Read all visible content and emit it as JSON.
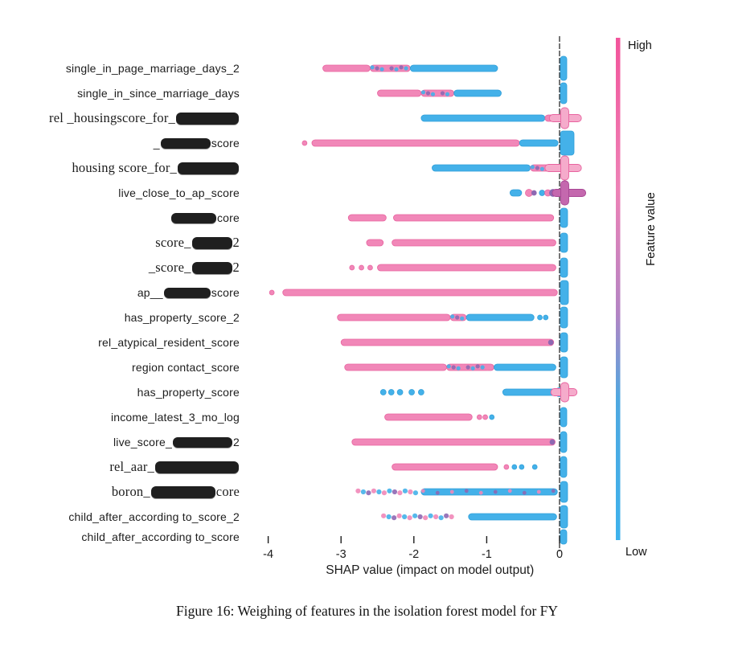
{
  "figure": {
    "caption": "Figure 16: Weighing of features in the isolation forest model for FY"
  },
  "chart_data": {
    "type": "scatter",
    "subtype": "shap-beeswarm",
    "title": "",
    "xlabel": "SHAP value (impact on model output)",
    "xticks": [
      -4,
      -3,
      -2,
      -1,
      0
    ],
    "xlim": [
      -4.1,
      0.4
    ],
    "zero_line_x": 0,
    "grid": false,
    "colorbar": {
      "high_label": "High",
      "low_label": "Low",
      "axis_label": "Feature value",
      "stops": [
        [
          0,
          "#f2549b"
        ],
        [
          0.3,
          "#ee82b6"
        ],
        [
          0.55,
          "#b384c4"
        ],
        [
          0.72,
          "#4fa8e0"
        ],
        [
          1,
          "#3db2ec"
        ]
      ]
    },
    "colors": {
      "pink": "#f187b8",
      "pink_edge": "#e8639f",
      "pink_light": "#f5abcb",
      "blue": "#44b1e9",
      "blue_edge": "#2f9fd9",
      "purple": "#8e68b2",
      "magenta": "#bd5ba6",
      "magenta_edge": "#a84794",
      "axis": "#1c1c1c"
    },
    "features": [
      {
        "y": 85,
        "serif": false,
        "label_parts": [
          {
            "text": "single_in_page_marriage_days_2"
          }
        ],
        "segments": [
          {
            "from": -3.25,
            "to": -2.6,
            "style": "pink"
          },
          {
            "from": -2.6,
            "to": -2.05,
            "style": "mix"
          },
          {
            "from": -2.05,
            "to": -0.85,
            "style": "blue"
          }
        ],
        "dots": [],
        "zero": {
          "type": "bar",
          "color": "blue",
          "h": 30,
          "w": 8
        }
      },
      {
        "y": 116,
        "serif": false,
        "label_parts": [
          {
            "text": "single_in_since_marriage_days"
          }
        ],
        "segments": [
          {
            "from": -2.5,
            "to": -1.9,
            "style": "pink"
          },
          {
            "from": -1.9,
            "to": -1.45,
            "style": "mix"
          },
          {
            "from": -1.45,
            "to": -0.8,
            "style": "blue"
          }
        ],
        "dots": [],
        "zero": {
          "type": "bar",
          "color": "blue",
          "h": 26,
          "w": 8
        }
      },
      {
        "y": 147,
        "serif": true,
        "label_parts": [
          {
            "text": "rel _housingscore_for_"
          },
          {
            "redacted_w": 78
          }
        ],
        "segments": [
          {
            "from": -1.9,
            "to": -0.2,
            "style": "blue"
          },
          {
            "from": -0.2,
            "to": -0.02,
            "style": "pink"
          }
        ],
        "dots": [],
        "zero": {
          "type": "cross",
          "color": "pink",
          "h": 26,
          "armL": -0.14,
          "armR": 0.3
        }
      },
      {
        "y": 178,
        "serif": false,
        "label_parts": [
          {
            "text": "_"
          },
          {
            "redacted_w": 62
          },
          {
            "text": "score"
          }
        ],
        "segments": [
          {
            "from": -3.4,
            "to": -0.55,
            "style": "pink"
          },
          {
            "from": -0.55,
            "to": -0.02,
            "style": "blue"
          }
        ],
        "dots": [
          {
            "x": -3.5,
            "c": "pink",
            "r": 3
          }
        ],
        "zero": {
          "type": "bar",
          "color": "blue",
          "h": 30,
          "w": 17
        }
      },
      {
        "y": 209,
        "serif": true,
        "label_parts": [
          {
            "text": "housing score_for_"
          },
          {
            "redacted_w": 76
          }
        ],
        "segments": [
          {
            "from": -1.75,
            "to": -0.4,
            "style": "blue"
          },
          {
            "from": -0.4,
            "to": -0.05,
            "style": "mix"
          }
        ],
        "dots": [],
        "zero": {
          "type": "cross",
          "color": "pink",
          "h": 30,
          "armL": -0.2,
          "armR": 0.3
        }
      },
      {
        "y": 240,
        "serif": false,
        "label_parts": [
          {
            "text": "live_close_to_ap_score"
          }
        ],
        "segments": [
          {
            "from": -0.68,
            "to": -0.52,
            "style": "blue"
          }
        ],
        "dots": [
          {
            "x": -0.42,
            "c": "pink",
            "r": 4.5
          },
          {
            "x": -0.35,
            "c": "purple",
            "r": 3
          },
          {
            "x": -0.24,
            "c": "blue",
            "r": 3.5
          },
          {
            "x": -0.16,
            "c": "pink",
            "r": 4
          },
          {
            "x": -0.09,
            "c": "purple",
            "r": 4.5
          }
        ],
        "zero": {
          "type": "cross",
          "color": "magenta",
          "h": 30,
          "armL": -0.1,
          "armR": 0.36
        }
      },
      {
        "y": 271,
        "serif": false,
        "label_parts": [
          {
            "redacted_w": 56
          },
          {
            "text": "core"
          }
        ],
        "segments": [
          {
            "from": -2.9,
            "to": -2.38,
            "style": "pink"
          },
          {
            "from": -2.28,
            "to": -0.08,
            "style": "pink"
          }
        ],
        "dots": [],
        "zero": {
          "type": "bar",
          "color": "blue",
          "h": 24,
          "w": 9
        }
      },
      {
        "y": 302,
        "serif": true,
        "label_parts": [
          {
            "text": "score_ "
          },
          {
            "redacted_w": 50
          },
          {
            "text": "2"
          }
        ],
        "segments": [
          {
            "from": -2.65,
            "to": -2.42,
            "style": "pink"
          },
          {
            "from": -2.3,
            "to": -0.05,
            "style": "pink"
          }
        ],
        "dots": [],
        "zero": {
          "type": "bar",
          "color": "blue",
          "h": 24,
          "w": 9
        }
      },
      {
        "y": 333,
        "serif": true,
        "label_parts": [
          {
            "text": "_score_ "
          },
          {
            "redacted_w": 50
          },
          {
            "text": "2"
          }
        ],
        "segments": [
          {
            "from": -2.5,
            "to": -0.05,
            "style": "pink"
          }
        ],
        "dots": [
          {
            "x": -2.85,
            "c": "pink",
            "r": 3
          },
          {
            "x": -2.72,
            "c": "pink",
            "r": 3
          },
          {
            "x": -2.6,
            "c": "pink",
            "r": 3
          }
        ],
        "zero": {
          "type": "bar",
          "color": "blue",
          "h": 24,
          "w": 9
        }
      },
      {
        "y": 364,
        "serif": false,
        "label_parts": [
          {
            "text": "ap__"
          },
          {
            "redacted_w": 58
          },
          {
            "text": "score"
          }
        ],
        "segments": [
          {
            "from": -3.8,
            "to": -0.03,
            "style": "pink"
          }
        ],
        "dots": [
          {
            "x": -3.95,
            "c": "pink",
            "r": 3
          }
        ],
        "zero": {
          "type": "bar",
          "color": "blue",
          "h": 30,
          "w": 10
        }
      },
      {
        "y": 395,
        "serif": false,
        "label_parts": [
          {
            "text": "has_property_score_2"
          }
        ],
        "segments": [
          {
            "from": -3.05,
            "to": -1.5,
            "style": "pink"
          },
          {
            "from": -1.5,
            "to": -1.28,
            "style": "mix"
          },
          {
            "from": -1.28,
            "to": -0.35,
            "style": "blue"
          }
        ],
        "dots": [
          {
            "x": -0.27,
            "c": "blue",
            "r": 3
          },
          {
            "x": -0.19,
            "c": "blue",
            "r": 3
          }
        ],
        "zero": {
          "type": "bar",
          "color": "blue",
          "h": 26,
          "w": 9
        }
      },
      {
        "y": 426,
        "serif": false,
        "label_parts": [
          {
            "text": "rel_atypical_resident_score"
          }
        ],
        "segments": [
          {
            "from": -3.0,
            "to": -0.08,
            "style": "pink"
          }
        ],
        "dots": [
          {
            "x": -0.12,
            "c": "purple",
            "r": 3
          }
        ],
        "zero": {
          "type": "bar",
          "color": "blue",
          "h": 24,
          "w": 9
        }
      },
      {
        "y": 457,
        "serif": false,
        "label_parts": [
          {
            "text": "region contact_score"
          }
        ],
        "segments": [
          {
            "from": -2.95,
            "to": -1.55,
            "style": "pink"
          },
          {
            "from": -1.55,
            "to": -0.9,
            "style": "mix"
          },
          {
            "from": -0.9,
            "to": -0.05,
            "style": "blue"
          }
        ],
        "dots": [],
        "zero": {
          "type": "bar",
          "color": "blue",
          "h": 26,
          "w": 9
        }
      },
      {
        "y": 488,
        "serif": false,
        "label_parts": [
          {
            "text": "has_property_score"
          }
        ],
        "segments": [
          {
            "from": -0.78,
            "to": -0.02,
            "style": "blue"
          }
        ],
        "dots": [
          {
            "x": -2.42,
            "c": "blue",
            "r": 3.5
          },
          {
            "x": -2.31,
            "c": "blue",
            "r": 3.5
          },
          {
            "x": -2.19,
            "c": "blue",
            "r": 3.5
          },
          {
            "x": -2.03,
            "c": "blue",
            "r": 3.5
          },
          {
            "x": -1.9,
            "c": "blue",
            "r": 3.5
          }
        ],
        "zero": {
          "type": "cross",
          "color": "pink",
          "h": 24,
          "armL": -0.12,
          "armR": 0.24
        }
      },
      {
        "y": 519,
        "serif": false,
        "label_parts": [
          {
            "text": "income_latest_3_mo_log"
          }
        ],
        "segments": [
          {
            "from": -2.4,
            "to": -1.2,
            "style": "pink"
          }
        ],
        "dots": [
          {
            "x": -1.1,
            "c": "pink",
            "r": 3
          },
          {
            "x": -1.02,
            "c": "pink",
            "r": 3
          },
          {
            "x": -0.93,
            "c": "blue",
            "r": 3
          }
        ],
        "zero": {
          "type": "bar",
          "color": "blue",
          "h": 24,
          "w": 8
        }
      },
      {
        "y": 550,
        "serif": false,
        "label_parts": [
          {
            "text": "live_score_"
          },
          {
            "redacted_w": 74
          },
          {
            "text": "2"
          }
        ],
        "segments": [
          {
            "from": -2.85,
            "to": -0.06,
            "style": "pink"
          }
        ],
        "dots": [
          {
            "x": -0.1,
            "c": "purple",
            "r": 3
          }
        ],
        "zero": {
          "type": "bar",
          "color": "blue",
          "h": 26,
          "w": 8
        }
      },
      {
        "y": 581,
        "serif": true,
        "label_parts": [
          {
            "text": "rel_aar_"
          },
          {
            "redacted_w": 104
          }
        ],
        "segments": [
          {
            "from": -2.3,
            "to": -0.85,
            "style": "pink"
          }
        ],
        "dots": [
          {
            "x": -0.73,
            "c": "pink",
            "r": 3
          },
          {
            "x": -0.62,
            "c": "blue",
            "r": 3
          },
          {
            "x": -0.52,
            "c": "blue",
            "r": 3
          },
          {
            "x": -0.34,
            "c": "blue",
            "r": 3
          }
        ],
        "zero": {
          "type": "bar",
          "color": "blue",
          "h": 26,
          "w": 8
        }
      },
      {
        "y": 612,
        "serif": true,
        "label_parts": [
          {
            "text": "boron_"
          },
          {
            "redacted_w": 80
          },
          {
            "text": "core"
          }
        ],
        "segments": [
          {
            "from": -2.8,
            "to": -1.92,
            "style": "spk"
          },
          {
            "from": -1.9,
            "to": -0.03,
            "style": "mixb"
          }
        ],
        "dots": [],
        "zero": {
          "type": "bar",
          "color": "blue",
          "h": 26,
          "w": 9
        }
      },
      {
        "y": 643,
        "serif": false,
        "label_parts": [
          {
            "text": "child_after_according to_score_2"
          }
        ],
        "segments": [
          {
            "from": -2.45,
            "to": -1.38,
            "style": "spk"
          },
          {
            "from": -1.25,
            "to": -0.04,
            "style": "blue"
          }
        ],
        "dots": [],
        "zero": {
          "type": "bar",
          "color": "blue",
          "h": 28,
          "w": 9
        }
      },
      {
        "y": 668,
        "serif": false,
        "label_parts": [
          {
            "text": "child_after_according to_score"
          }
        ],
        "segments": [],
        "dots": [],
        "zero": {
          "type": "bar",
          "color": "blue",
          "h": 18,
          "w": 8
        }
      }
    ]
  }
}
